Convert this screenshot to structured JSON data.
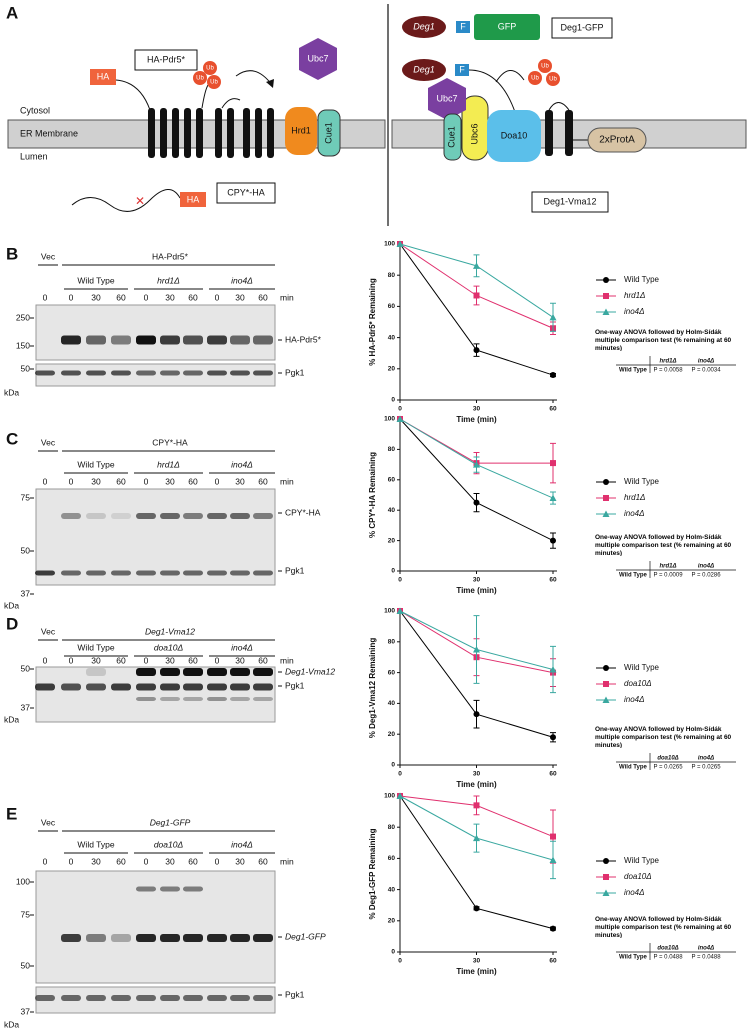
{
  "panel_a": {
    "label": "A",
    "left": {
      "ha_top": "HA",
      "substrate": "HA-Pdr5*",
      "ub": [
        "Ub",
        "Ub",
        "Ub"
      ],
      "ubc7": "Ubc7",
      "hrd1": "Hrd1",
      "cue1": "Cue1",
      "cytosol": "Cytosol",
      "membrane": "ER Membrane",
      "lumen": "Lumen",
      "ha_bottom": "HA",
      "cpy": "CPY*-HA"
    },
    "right": {
      "deg1_a": "Deg1",
      "f_a": "F",
      "gfp": "GFP",
      "deg1_gfp": "Deg1-GFP",
      "deg1_b": "Deg1",
      "f_b": "F",
      "ub": [
        "Ub",
        "Ub",
        "Ub"
      ],
      "ubc7": "Ubc7",
      "cue1": "Cue1",
      "ubc6": "Ubc6",
      "doa10": "Doa10",
      "protA": "2xProtA",
      "deg1_vma12": "Deg1-Vma12"
    }
  },
  "panels": [
    {
      "label": "B",
      "vec": "Vec",
      "construct": "HA-Pdr5*",
      "groups": [
        "Wild Type",
        "hrd1Δ",
        "ino4Δ"
      ],
      "times": [
        0,
        0,
        30,
        60,
        0,
        30,
        60,
        0,
        30,
        60
      ],
      "time_unit": "min",
      "markers": [
        250,
        150,
        50
      ],
      "marker_unit": "kDa",
      "bands": [
        "HA-Pdr5*",
        "Pgk1"
      ],
      "stats": {
        "title": "One-way ANOVA followed by Holm-Šídák multiple comparison test (% remaining at 60 minutes)",
        "columns": [
          "hrd1Δ",
          "ino4Δ"
        ],
        "row_label": "Wild Type",
        "p_values": [
          "P = 0.0058",
          "P = 0.0034"
        ]
      }
    },
    {
      "label": "C",
      "vec": "Vec",
      "construct": "CPY*-HA",
      "groups": [
        "Wild Type",
        "hrd1Δ",
        "ino4Δ"
      ],
      "times": [
        0,
        0,
        30,
        60,
        0,
        30,
        60,
        0,
        30,
        60
      ],
      "time_unit": "min",
      "markers": [
        75,
        50,
        37
      ],
      "marker_unit": "kDa",
      "bands": [
        "CPY*-HA",
        "Pgk1"
      ],
      "stats": {
        "title": "One-way ANOVA followed by Holm-Šídák multiple comparison test (% remaining at 60 minutes)",
        "columns": [
          "hrd1Δ",
          "ino4Δ"
        ],
        "row_label": "Wild Type",
        "p_values": [
          "P = 0.0009",
          "P = 0.0286"
        ]
      }
    },
    {
      "label": "D",
      "vec": "Vec",
      "construct": "Deg1-Vma12",
      "groups": [
        "Wild Type",
        "doa10Δ",
        "ino4Δ"
      ],
      "times": [
        0,
        0,
        30,
        60,
        0,
        30,
        60,
        0,
        30,
        60
      ],
      "time_unit": "min",
      "markers": [
        50,
        37
      ],
      "marker_unit": "kDa",
      "bands": [
        "Deg1-Vma12",
        "Pgk1"
      ],
      "stats": {
        "title": "One-way ANOVA followed by Holm-Šídák multiple comparison test (% remaining at 60 minutes)",
        "columns": [
          "doa10Δ",
          "ino4Δ"
        ],
        "row_label": "Wild Type",
        "p_values": [
          "P = 0.0265",
          "P = 0.0265"
        ]
      }
    },
    {
      "label": "E",
      "vec": "Vec",
      "construct": "Deg1-GFP",
      "groups": [
        "Wild Type",
        "doa10Δ",
        "ino4Δ"
      ],
      "times": [
        0,
        0,
        30,
        60,
        0,
        30,
        60,
        0,
        30,
        60
      ],
      "time_unit": "min",
      "markers": [
        100,
        75,
        50,
        37
      ],
      "marker_unit": "kDa",
      "bands": [
        "Deg1-GFP",
        "Pgk1"
      ],
      "stats": {
        "title": "One-way ANOVA followed by Holm-Šídák multiple comparison test (% remaining at 60 minutes)",
        "columns": [
          "doa10Δ",
          "ino4Δ"
        ],
        "row_label": "Wild Type",
        "p_values": [
          "P = 0.0488",
          "P = 0.0488"
        ]
      }
    }
  ],
  "chart_data": [
    {
      "type": "line",
      "ylabel": "% HA-Pdr5* Remaining",
      "xlabel": "Time (min)",
      "x": [
        0,
        30,
        60
      ],
      "xlim": [
        0,
        60
      ],
      "xticks": [
        0,
        30,
        60
      ],
      "ylim": [
        0,
        100
      ],
      "yticks": [
        0,
        20,
        40,
        60,
        80,
        100
      ],
      "series": [
        {
          "name": "Wild Type",
          "color": "#000000",
          "marker": "circle",
          "values": [
            100,
            32,
            16
          ],
          "errors": [
            0,
            4,
            1
          ]
        },
        {
          "name": "hrd1Δ",
          "color": "#e0306e",
          "marker": "square",
          "values": [
            100,
            67,
            46
          ],
          "errors": [
            0,
            6,
            4
          ]
        },
        {
          "name": "ino4Δ",
          "color": "#3aa8a0",
          "marker": "triangle",
          "values": [
            100,
            86,
            53
          ],
          "errors": [
            0,
            7,
            9
          ]
        }
      ]
    },
    {
      "type": "line",
      "ylabel": "% CPY*-HA Remaining",
      "xlabel": "Time (min)",
      "x": [
        0,
        30,
        60
      ],
      "xlim": [
        0,
        60
      ],
      "xticks": [
        0,
        30,
        60
      ],
      "ylim": [
        0,
        100
      ],
      "yticks": [
        0,
        20,
        40,
        60,
        80,
        100
      ],
      "series": [
        {
          "name": "Wild Type",
          "color": "#000000",
          "marker": "circle",
          "values": [
            100,
            45,
            20
          ],
          "errors": [
            0,
            6,
            5
          ]
        },
        {
          "name": "hrd1Δ",
          "color": "#e0306e",
          "marker": "square",
          "values": [
            100,
            71,
            71
          ],
          "errors": [
            0,
            7,
            13
          ]
        },
        {
          "name": "ino4Δ",
          "color": "#3aa8a0",
          "marker": "triangle",
          "values": [
            100,
            70,
            48
          ],
          "errors": [
            0,
            5,
            4
          ]
        }
      ]
    },
    {
      "type": "line",
      "ylabel": "% Deg1-Vma12 Remaining",
      "xlabel": "Time (min)",
      "x": [
        0,
        30,
        60
      ],
      "xlim": [
        0,
        60
      ],
      "xticks": [
        0,
        30,
        60
      ],
      "ylim": [
        0,
        100
      ],
      "yticks": [
        0,
        20,
        40,
        60,
        80,
        100
      ],
      "series": [
        {
          "name": "Wild Type",
          "color": "#000000",
          "marker": "circle",
          "values": [
            100,
            33,
            18
          ],
          "errors": [
            0,
            9,
            3
          ]
        },
        {
          "name": "doa10Δ",
          "color": "#e0306e",
          "marker": "square",
          "values": [
            100,
            70,
            60
          ],
          "errors": [
            0,
            12,
            9
          ]
        },
        {
          "name": "ino4Δ",
          "color": "#3aa8a0",
          "marker": "triangle",
          "values": [
            100,
            75,
            62
          ],
          "errors": [
            0,
            22,
            15
          ]
        }
      ]
    },
    {
      "type": "line",
      "ylabel": "% Deg1-GFP Remaining",
      "xlabel": "Time (min)",
      "x": [
        0,
        30,
        60
      ],
      "xlim": [
        0,
        60
      ],
      "xticks": [
        0,
        30,
        60
      ],
      "ylim": [
        0,
        100
      ],
      "yticks": [
        0,
        20,
        40,
        60,
        80,
        100
      ],
      "series": [
        {
          "name": "Wild Type",
          "color": "#000000",
          "marker": "circle",
          "values": [
            100,
            28,
            15
          ],
          "errors": [
            0,
            1,
            1
          ]
        },
        {
          "name": "doa10Δ",
          "color": "#e0306e",
          "marker": "square",
          "values": [
            100,
            94,
            74
          ],
          "errors": [
            0,
            6,
            17
          ]
        },
        {
          "name": "ino4Δ",
          "color": "#3aa8a0",
          "marker": "triangle",
          "values": [
            100,
            73,
            59
          ],
          "errors": [
            0,
            9,
            12
          ]
        }
      ]
    }
  ]
}
